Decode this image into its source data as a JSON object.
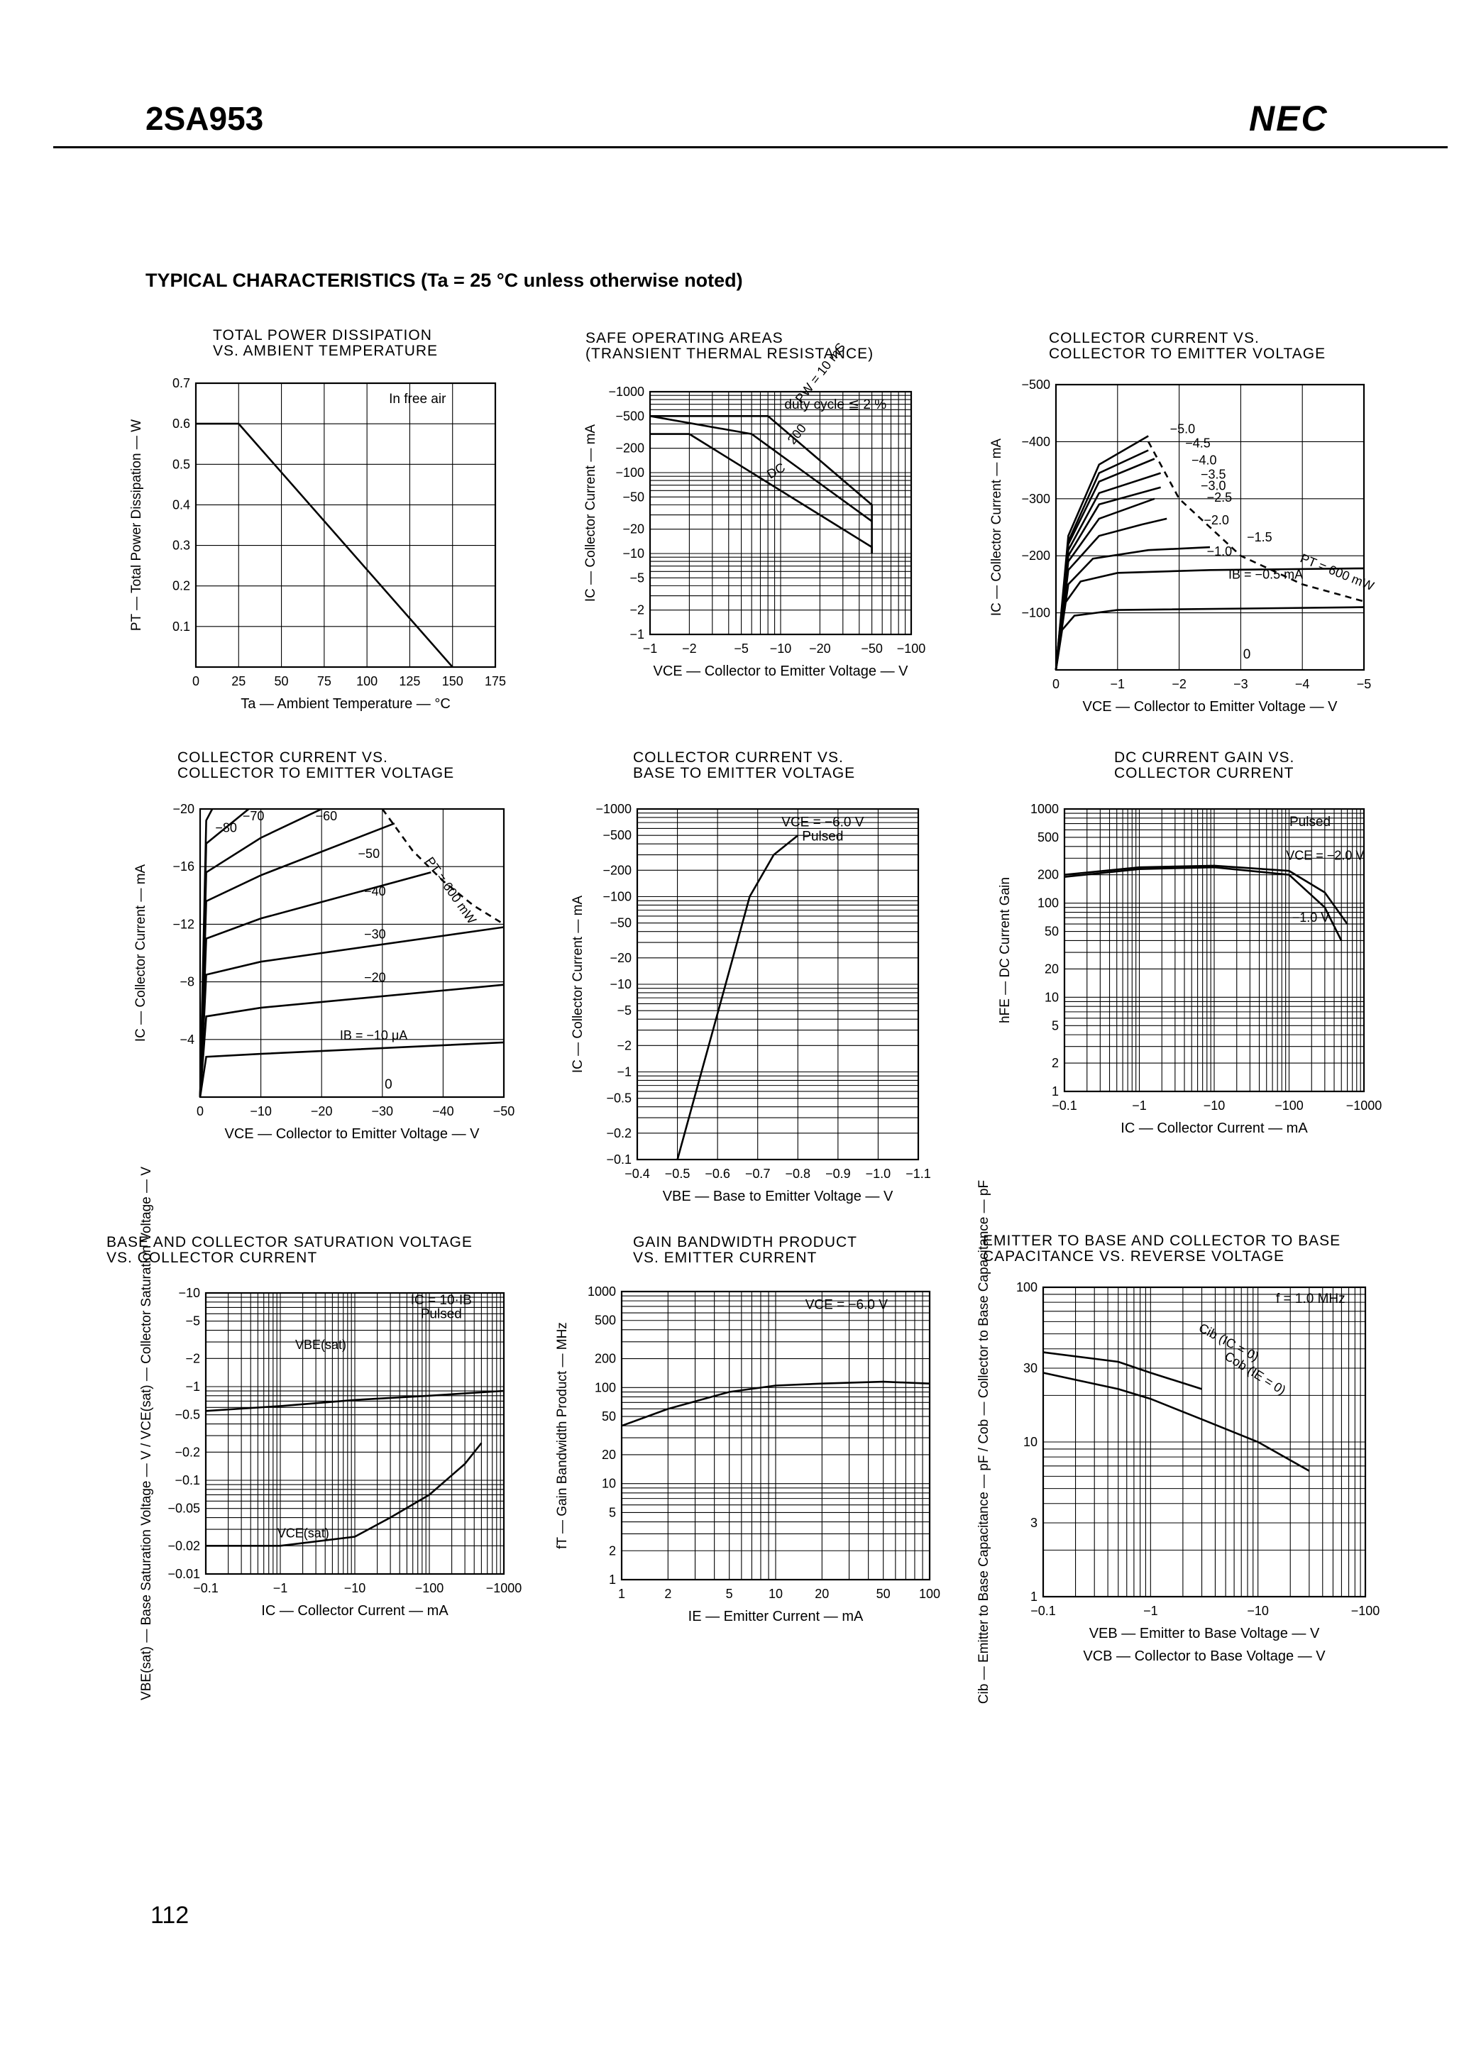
{
  "header": {
    "part_number": "2SA953",
    "brand": "NEC"
  },
  "section_title": "TYPICAL CHARACTERISTICS (Ta = 25 °C unless otherwise noted)",
  "page_number": "112",
  "chart_data": [
    {
      "id": "c1",
      "type": "line",
      "title": [
        "TOTAL POWER DISSIPATION",
        "vs. AMBIENT TEMPERATURE"
      ],
      "xlabel": "Ta — Ambient Temperature — °C",
      "ylabel": "PT — Total Power Dissipation — W",
      "xlim": [
        0,
        175
      ],
      "ylim": [
        0,
        0.7
      ],
      "xticks": [
        0,
        25,
        50,
        75,
        100,
        125,
        150,
        175
      ],
      "yticks": [
        0.1,
        0.2,
        0.3,
        0.4,
        0.5,
        0.6,
        0.7
      ],
      "series": [
        {
          "points": [
            [
              0,
              0.6
            ],
            [
              25,
              0.6
            ],
            [
              150,
              0
            ]
          ]
        }
      ],
      "annotations": [
        "In free air"
      ]
    },
    {
      "id": "c2",
      "type": "line",
      "title": [
        "SAFE OPERATING AREAS",
        "(TRANSIENT THERMAL RESISTANCE)"
      ],
      "xlabel": "VCE — Collector to Emitter Voltage — V",
      "ylabel": "IC — Collector Current — mA",
      "xscale": "log",
      "yscale": "log",
      "xlim": [
        1,
        100
      ],
      "ylim": [
        1,
        1000
      ],
      "xticks": [
        "−1",
        "−2",
        "−5",
        "−10",
        "−20",
        "−50",
        "−100"
      ],
      "yticks": [
        "−1",
        "−2",
        "−5",
        "−10",
        "−20",
        "−50",
        "−100",
        "−200",
        "−500",
        "−1000"
      ],
      "series": [
        {
          "label": "PW = 10 mS",
          "points": [
            [
              1,
              500
            ],
            [
              8,
              500
            ],
            [
              50,
              40
            ],
            [
              50,
              10
            ]
          ]
        },
        {
          "label": "200",
          "points": [
            [
              1,
              500
            ],
            [
              6,
              300
            ],
            [
              50,
              25
            ]
          ]
        },
        {
          "label": "DC",
          "points": [
            [
              1,
              300
            ],
            [
              2,
              300
            ],
            [
              50,
              12
            ],
            [
              50,
              10
            ]
          ]
        }
      ],
      "annotations": [
        "duty cycle ≦ 2 %"
      ]
    },
    {
      "id": "c3",
      "type": "line",
      "title": [
        "COLLECTOR CURRENT vs.",
        "COLLECTOR TO EMITTER VOLTAGE"
      ],
      "xlabel": "VCE — Collector to Emitter Voltage — V",
      "ylabel": "IC — Collector Current — mA",
      "xlim": [
        0,
        -5
      ],
      "ylim": [
        0,
        -500
      ],
      "xticks": [
        "0",
        "−1",
        "−2",
        "−3",
        "−4",
        "−5"
      ],
      "yticks": [
        "−100",
        "−200",
        "−300",
        "−400",
        "−500"
      ],
      "series": [
        {
          "label": "IB = −0.5 mA",
          "points": [
            [
              0,
              0
            ],
            [
              -0.1,
              -70
            ],
            [
              -0.3,
              -95
            ],
            [
              -1,
              -105
            ],
            [
              -5,
              -110
            ]
          ]
        },
        {
          "label": "−1.0",
          "points": [
            [
              0,
              0
            ],
            [
              -0.1,
              -110
            ],
            [
              -0.4,
              -155
            ],
            [
              -1,
              -170
            ],
            [
              -2.5,
              -175
            ],
            [
              -5,
              -178
            ]
          ]
        },
        {
          "label": "−1.5",
          "points": [
            [
              0,
              0
            ],
            [
              -0.2,
              -150
            ],
            [
              -0.6,
              -195
            ],
            [
              -1.5,
              -210
            ],
            [
              -2.5,
              -215
            ]
          ]
        },
        {
          "label": "−2.0",
          "points": [
            [
              0,
              0
            ],
            [
              -0.2,
              -175
            ],
            [
              -0.7,
              -235
            ],
            [
              -1.4,
              -255
            ],
            [
              -1.8,
              -265
            ]
          ]
        },
        {
          "label": "−2.5",
          "points": [
            [
              0,
              0
            ],
            [
              -0.2,
              -190
            ],
            [
              -0.7,
              -265
            ],
            [
              -1.6,
              -300
            ]
          ]
        },
        {
          "label": "−3.0",
          "points": [
            [
              0,
              0
            ],
            [
              -0.2,
              -200
            ],
            [
              -0.7,
              -290
            ],
            [
              -1.7,
              -320
            ]
          ]
        },
        {
          "label": "−3.5",
          "points": [
            [
              0,
              0
            ],
            [
              -0.2,
              -210
            ],
            [
              -0.7,
              -310
            ],
            [
              -1.7,
              -345
            ]
          ]
        },
        {
          "label": "−4.0",
          "points": [
            [
              0,
              0
            ],
            [
              -0.2,
              -220
            ],
            [
              -0.7,
              -330
            ],
            [
              -1.6,
              -370
            ]
          ]
        },
        {
          "label": "−4.5",
          "points": [
            [
              0,
              0
            ],
            [
              -0.2,
              -225
            ],
            [
              -0.7,
              -345
            ],
            [
              -1.5,
              -385
            ]
          ]
        },
        {
          "label": "−5.0",
          "points": [
            [
              0,
              0
            ],
            [
              -0.2,
              -235
            ],
            [
              -0.7,
              -360
            ],
            [
              -1.5,
              -410
            ]
          ]
        },
        {
          "label": "PT = 600 mW",
          "dashed": true,
          "points": [
            [
              -1.5,
              -400
            ],
            [
              -2,
              -300
            ],
            [
              -3,
              -200
            ],
            [
              -4,
              -150
            ],
            [
              -5,
              -120
            ]
          ]
        }
      ],
      "annotations": [
        "0"
      ]
    },
    {
      "id": "c4",
      "type": "line",
      "title": [
        "COLLECTOR CURRENT vs.",
        "COLLECTOR TO EMITTER VOLTAGE"
      ],
      "xlabel": "VCE — Collector to Emitter Voltage — V",
      "ylabel": "IC — Collector Current — mA",
      "xlim": [
        0,
        -50
      ],
      "ylim": [
        0,
        -20
      ],
      "xticks": [
        "0",
        "−10",
        "−20",
        "−30",
        "−40",
        "−50"
      ],
      "yticks": [
        "−4",
        "−8",
        "−12",
        "−16",
        "−20"
      ],
      "series": [
        {
          "label": "IB = −10 μA",
          "points": [
            [
              0,
              0
            ],
            [
              -1,
              -2.8
            ],
            [
              -10,
              -3.0
            ],
            [
              -50,
              -3.8
            ]
          ]
        },
        {
          "label": "−20",
          "points": [
            [
              0,
              0
            ],
            [
              -1,
              -5.6
            ],
            [
              -10,
              -6.2
            ],
            [
              -50,
              -7.8
            ]
          ]
        },
        {
          "label": "−30",
          "points": [
            [
              0,
              0
            ],
            [
              -1,
              -8.5
            ],
            [
              -10,
              -9.4
            ],
            [
              -50,
              -11.8
            ]
          ]
        },
        {
          "label": "−40",
          "points": [
            [
              0,
              0
            ],
            [
              -1,
              -11.0
            ],
            [
              -10,
              -12.4
            ],
            [
              -38,
              -15.6
            ]
          ]
        },
        {
          "label": "−50",
          "points": [
            [
              0,
              0
            ],
            [
              -1,
              -13.6
            ],
            [
              -10,
              -15.4
            ],
            [
              -32,
              -19.0
            ]
          ]
        },
        {
          "label": "−60",
          "points": [
            [
              0,
              0
            ],
            [
              -1,
              -15.6
            ],
            [
              -10,
              -18.0
            ],
            [
              -20,
              -20
            ]
          ]
        },
        {
          "label": "−70",
          "points": [
            [
              0,
              0
            ],
            [
              -1,
              -17.6
            ],
            [
              -8,
              -20
            ]
          ]
        },
        {
          "label": "−80",
          "points": [
            [
              0,
              0
            ],
            [
              -1,
              -19.2
            ],
            [
              -2,
              -20
            ]
          ]
        },
        {
          "label": "PT = 600 mW",
          "dashed": true,
          "points": [
            [
              -30,
              -20
            ],
            [
              -35,
              -17.1
            ],
            [
              -40,
              -15
            ],
            [
              -45,
              -13.3
            ],
            [
              -50,
              -12
            ]
          ]
        }
      ],
      "annotations": [
        "0"
      ]
    },
    {
      "id": "c5",
      "type": "line",
      "title": [
        "COLLECTOR CURRENT vs.",
        "BASE TO EMITTER VOLTAGE"
      ],
      "xlabel": "VBE — Base to Emitter Voltage — V",
      "ylabel": "IC — Collector Current — mA",
      "yscale": "log",
      "xlim": [
        -0.4,
        -1.1
      ],
      "ylim": [
        0.1,
        1000
      ],
      "xticks": [
        "−0.4",
        "−0.5",
        "−0.6",
        "−0.7",
        "−0.8",
        "−0.9",
        "−1.0",
        "−1.1"
      ],
      "yticks": [
        "−0.1",
        "−0.2",
        "−0.5",
        "−1",
        "−2",
        "−5",
        "−10",
        "−20",
        "−50",
        "−100",
        "−200",
        "−500",
        "−1000"
      ],
      "series": [
        {
          "points": [
            [
              -0.5,
              0.1
            ],
            [
              -0.56,
              1
            ],
            [
              -0.62,
              10
            ],
            [
              -0.68,
              100
            ],
            [
              -0.74,
              300
            ],
            [
              -0.8,
              500
            ]
          ]
        }
      ],
      "annotations": [
        "VCE = −6.0 V",
        "Pulsed"
      ]
    },
    {
      "id": "c6",
      "type": "line",
      "title": [
        "DC CURRENT GAIN vs.",
        "COLLECTOR CURRENT"
      ],
      "xlabel": "IC — Collector Current — mA",
      "ylabel": "hFE — DC Current Gain",
      "xscale": "log",
      "yscale": "log",
      "xlim": [
        0.1,
        1000
      ],
      "ylim": [
        1,
        1000
      ],
      "xticks": [
        "−0.1",
        "−1",
        "−10",
        "−100",
        "−1000"
      ],
      "yticks": [
        "1",
        "2",
        "5",
        "10",
        "20",
        "50",
        "100",
        "200",
        "500",
        "1000"
      ],
      "series": [
        {
          "label": "VCE = −2.0 V",
          "points": [
            [
              0.1,
              200
            ],
            [
              1,
              240
            ],
            [
              10,
              250
            ],
            [
              100,
              220
            ],
            [
              300,
              130
            ],
            [
              600,
              60
            ]
          ]
        },
        {
          "label": "−1.0 V",
          "points": [
            [
              0.1,
              190
            ],
            [
              1,
              230
            ],
            [
              10,
              240
            ],
            [
              100,
              200
            ],
            [
              300,
              90
            ],
            [
              500,
              40
            ]
          ]
        }
      ],
      "annotations": [
        "Pulsed"
      ]
    },
    {
      "id": "c7",
      "type": "line",
      "title": [
        "BASE AND COLLECTOR SATURATION VOLTAGE",
        "vs. COLLECTOR CURRENT"
      ],
      "xlabel": "IC — Collector Current — mA",
      "ylabel": "VBE(sat) — Base Saturation Voltage — V / VCE(sat) — Collector Saturation Voltage — V",
      "xscale": "log",
      "yscale": "log",
      "xlim": [
        0.1,
        1000
      ],
      "ylim": [
        0.01,
        10
      ],
      "xticks": [
        "−0.1",
        "−1",
        "−10",
        "−100",
        "−1000"
      ],
      "yticks": [
        "−0.01",
        "−0.02",
        "−0.05",
        "−0.1",
        "−0.2",
        "−0.5",
        "−1",
        "−2",
        "−5",
        "−10"
      ],
      "series": [
        {
          "label": "VBE(sat)",
          "points": [
            [
              0.1,
              0.55
            ],
            [
              1,
              0.62
            ],
            [
              10,
              0.72
            ],
            [
              100,
              0.8
            ],
            [
              1000,
              0.9
            ]
          ]
        },
        {
          "label": "VCE(sat)",
          "points": [
            [
              0.1,
              0.02
            ],
            [
              1,
              0.02
            ],
            [
              10,
              0.025
            ],
            [
              30,
              0.04
            ],
            [
              100,
              0.07
            ],
            [
              300,
              0.15
            ],
            [
              500,
              0.25
            ]
          ]
        }
      ],
      "annotations": [
        "IC = 10·IB",
        "Pulsed"
      ]
    },
    {
      "id": "c8",
      "type": "line",
      "title": [
        "GAIN BANDWIDTH PRODUCT",
        "vs. EMITTER CURRENT"
      ],
      "xlabel": "IE — Emitter Current — mA",
      "ylabel": "fT — Gain Bandwidth Product — MHz",
      "xscale": "log",
      "yscale": "log",
      "xlim": [
        1,
        100
      ],
      "ylim": [
        1,
        1000
      ],
      "xticks": [
        "1",
        "2",
        "5",
        "10",
        "20",
        "50",
        "100"
      ],
      "yticks": [
        "1",
        "2",
        "5",
        "10",
        "20",
        "50",
        "100",
        "200",
        "500",
        "1000"
      ],
      "series": [
        {
          "points": [
            [
              1,
              40
            ],
            [
              2,
              60
            ],
            [
              5,
              90
            ],
            [
              10,
              105
            ],
            [
              20,
              110
            ],
            [
              50,
              115
            ],
            [
              100,
              110
            ]
          ]
        }
      ],
      "annotations": [
        "VCE = −6.0 V"
      ]
    },
    {
      "id": "c9",
      "type": "line",
      "title": [
        "EMITTER TO BASE AND COLLECTOR TO BASE",
        "CAPACITANCE vs. REVERSE VOLTAGE"
      ],
      "xlabel": [
        "VEB — Emitter to Base Voltage — V",
        "VCB — Collector to Base Voltage — V"
      ],
      "ylabel": "Cib — Emitter to Base Capacitance — pF / Cob — Collector to Base Capacitance — pF",
      "xscale": "log",
      "yscale": "log",
      "xlim": [
        0.1,
        100
      ],
      "ylim": [
        1,
        100
      ],
      "xticks": [
        "−0.1",
        "−1",
        "−10",
        "−100"
      ],
      "yticks": [
        "1",
        "3",
        "10",
        "30",
        "100"
      ],
      "series": [
        {
          "label": "Cib (IC = 0)",
          "points": [
            [
              0.1,
              38
            ],
            [
              0.5,
              33
            ],
            [
              1,
              28
            ],
            [
              3,
              22
            ]
          ]
        },
        {
          "label": "Cob (IE = 0)",
          "points": [
            [
              0.1,
              28
            ],
            [
              0.5,
              22
            ],
            [
              1,
              19
            ],
            [
              3,
              14
            ],
            [
              10,
              10
            ],
            [
              30,
              6.5
            ]
          ]
        }
      ],
      "annotations": [
        "f = 1.0 MHz"
      ]
    }
  ]
}
